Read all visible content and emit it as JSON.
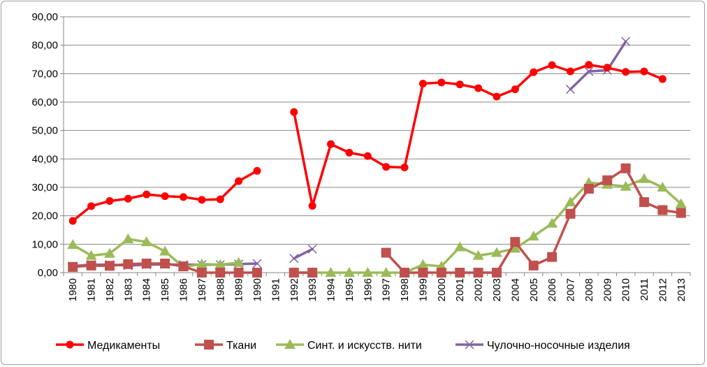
{
  "chart_data": {
    "type": "line",
    "title": "",
    "xlabel": "",
    "ylabel": "",
    "ylim": [
      0,
      90
    ],
    "ytick_step": 10,
    "ytick_labels": [
      "0,00",
      "10,00",
      "20,00",
      "30,00",
      "40,00",
      "50,00",
      "60,00",
      "70,00",
      "80,00",
      "90,00"
    ],
    "grid": "horizontal",
    "legend_position": "bottom",
    "categories": [
      "1980",
      "1981",
      "1982",
      "1983",
      "1984",
      "1985",
      "1986",
      "1987",
      "1988",
      "1989",
      "1990",
      "1991",
      "1992",
      "1993",
      "1994",
      "1995",
      "1996",
      "1997",
      "1998",
      "1999",
      "2000",
      "2001",
      "2002",
      "2003",
      "2004",
      "2005",
      "2006",
      "2007",
      "2008",
      "2009",
      "2010",
      "2011",
      "2012",
      "2013"
    ],
    "series": [
      {
        "name": "Медикаменты",
        "color": "#ff0000",
        "marker": "circle",
        "values": [
          18.2,
          23.4,
          25.2,
          26.0,
          27.5,
          26.9,
          26.6,
          25.6,
          25.8,
          32.2,
          35.8,
          null,
          56.5,
          23.5,
          45.2,
          42.2,
          41.0,
          37.2,
          37.0,
          66.5,
          66.9,
          66.2,
          64.9,
          61.9,
          64.5,
          70.5,
          73.0,
          70.8,
          73.1,
          72.1,
          70.6,
          70.8,
          68.1,
          null
        ]
      },
      {
        "name": "Ткани",
        "color": "#c0504d",
        "marker": "square",
        "values": [
          2.0,
          2.5,
          2.4,
          3.0,
          3.2,
          3.2,
          2.2,
          0.0,
          0.0,
          0.0,
          0.0,
          null,
          0.0,
          0.0,
          null,
          null,
          null,
          7.0,
          0.0,
          0.0,
          0.0,
          0.0,
          0.0,
          0.0,
          10.8,
          2.5,
          5.5,
          20.7,
          29.5,
          32.5,
          36.7,
          24.8,
          22.0,
          21.0
        ]
      },
      {
        "name": "Синт. и искусств. нити",
        "color": "#9bbb59",
        "marker": "triangle",
        "values": [
          9.8,
          6.0,
          6.7,
          11.8,
          10.8,
          7.5,
          2.0,
          3.0,
          2.8,
          3.5,
          null,
          null,
          0.0,
          0.0,
          0.0,
          0.0,
          0.0,
          0.0,
          0.0,
          2.8,
          2.2,
          9.0,
          6.0,
          7.0,
          8.5,
          12.8,
          17.3,
          24.8,
          31.7,
          31.0,
          30.3,
          33.0,
          30.0,
          24.2
        ]
      },
      {
        "name": "Чулочно-носочные изделия",
        "color": "#8064a2",
        "marker": "x",
        "values": [
          2.3,
          2.8,
          2.8,
          2.5,
          2.8,
          2.9,
          2.8,
          2.8,
          2.8,
          3.0,
          3.2,
          null,
          5.0,
          8.3,
          null,
          null,
          null,
          null,
          null,
          null,
          null,
          null,
          null,
          null,
          null,
          null,
          null,
          64.5,
          70.8,
          71.2,
          81.3,
          null,
          null,
          null
        ]
      }
    ]
  }
}
